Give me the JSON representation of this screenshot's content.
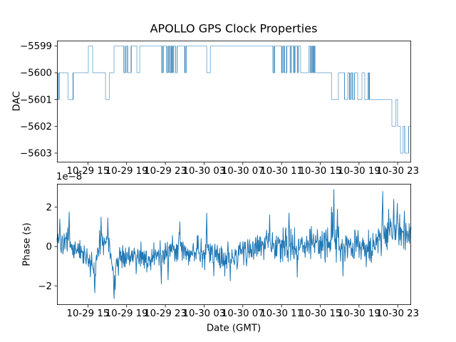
{
  "figure": {
    "title": "APOLLO GPS Clock Properties",
    "background": "#ffffff",
    "line_color": "#1f77b4",
    "text_color": "#000000"
  },
  "xaxis": {
    "label": "Date (GMT)",
    "tick_labels": [
      "10-29 15",
      "10-29 19",
      "10-29 23",
      "10-30 03",
      "10-30 07",
      "10-30 11",
      "10-30 15",
      "10-30 19",
      "10-30 23"
    ],
    "tick_hours": [
      15,
      19,
      23,
      27,
      31,
      35,
      39,
      43,
      47
    ],
    "hours_since": "10-29 00:00",
    "xlim_hours": [
      11.81,
      48.38
    ]
  },
  "chart_data": [
    {
      "type": "step-line",
      "name": "dac",
      "ylabel": "DAC",
      "yticks": [
        -5599,
        -5600,
        -5601,
        -5602,
        -5603
      ],
      "ytick_labels": [
        "−5599",
        "−5600",
        "−5601",
        "−5602",
        "−5603"
      ],
      "ylim": [
        -5603.32,
        -5598.77
      ],
      "grid": false,
      "legend": "none",
      "line_alpha_light": 0.5,
      "line_alpha_medium": 0.8,
      "line_alpha_dark": 1.0,
      "start_value": -5600,
      "transitions": [
        [
          11.88,
          -5601,
          "d"
        ],
        [
          12.03,
          -5600,
          "d"
        ],
        [
          12.95,
          -5601,
          "l"
        ],
        [
          13.47,
          -5600,
          "d"
        ],
        [
          15.05,
          -5599,
          "l"
        ],
        [
          15.49,
          -5600,
          "l"
        ],
        [
          16.82,
          -5601,
          "l"
        ],
        [
          17.22,
          -5600,
          "l"
        ],
        [
          17.7,
          -5599,
          "l"
        ],
        [
          18.73,
          -5600,
          "d"
        ],
        [
          18.92,
          -5599,
          "d"
        ],
        [
          19.1,
          -5600,
          "d"
        ],
        [
          19.47,
          -5599,
          "d"
        ],
        [
          20.06,
          -5600,
          "l"
        ],
        [
          20.35,
          -5599,
          "l"
        ],
        [
          22.64,
          -5600,
          "d"
        ],
        [
          22.78,
          -5599,
          "d"
        ],
        [
          23.15,
          -5600,
          "d"
        ],
        [
          23.3,
          -5599,
          "d"
        ],
        [
          23.45,
          -5600,
          "d"
        ],
        [
          23.6,
          -5599,
          "d"
        ],
        [
          23.71,
          -5600,
          "d"
        ],
        [
          23.82,
          -5599,
          "d"
        ],
        [
          24.04,
          -5600,
          "m"
        ],
        [
          24.22,
          -5599,
          "m"
        ],
        [
          25.0,
          -5600,
          "d"
        ],
        [
          25.14,
          -5599,
          "d"
        ],
        [
          27.28,
          -5600,
          "l"
        ],
        [
          27.65,
          -5599,
          "l"
        ],
        [
          34.13,
          -5600,
          "d"
        ],
        [
          34.28,
          -5599,
          "d"
        ],
        [
          35.02,
          -5600,
          "d"
        ],
        [
          35.16,
          -5599,
          "d"
        ],
        [
          35.31,
          -5600,
          "d"
        ],
        [
          35.53,
          -5599,
          "d"
        ],
        [
          35.9,
          -5600,
          "m"
        ],
        [
          36.01,
          -5599,
          "m"
        ],
        [
          36.27,
          -5600,
          "d"
        ],
        [
          36.38,
          -5599,
          "d"
        ],
        [
          36.64,
          -5600,
          "m"
        ],
        [
          36.75,
          -5599,
          "m"
        ],
        [
          36.97,
          -5600,
          "l"
        ],
        [
          37.81,
          -5599,
          "l"
        ],
        [
          37.96,
          -5600,
          "d"
        ],
        [
          38.11,
          -5599,
          "d"
        ],
        [
          38.22,
          -5600,
          "d"
        ],
        [
          38.33,
          -5599,
          "d"
        ],
        [
          38.44,
          -5600,
          "d"
        ],
        [
          40.17,
          -5601,
          "l"
        ],
        [
          40.87,
          -5600,
          "l"
        ],
        [
          41.5,
          -5601,
          "m"
        ],
        [
          41.83,
          -5600,
          "l"
        ],
        [
          42.01,
          -5601,
          "d"
        ],
        [
          42.16,
          -5600,
          "d"
        ],
        [
          42.34,
          -5601,
          "d"
        ],
        [
          42.53,
          -5600,
          "m"
        ],
        [
          42.86,
          -5601,
          "l"
        ],
        [
          43.3,
          -5600,
          "l"
        ],
        [
          43.59,
          -5601,
          "l"
        ],
        [
          43.96,
          -5600,
          "d"
        ],
        [
          44.07,
          -5601,
          "d"
        ],
        [
          46.39,
          -5602,
          "l"
        ],
        [
          46.8,
          -5601,
          "l"
        ],
        [
          46.98,
          -5602,
          "l"
        ],
        [
          47.28,
          -5603,
          "l"
        ],
        [
          47.54,
          -5602,
          "l"
        ],
        [
          47.72,
          -5603,
          "m"
        ],
        [
          48.12,
          -5602,
          "m"
        ]
      ]
    },
    {
      "type": "line",
      "name": "phase",
      "ylabel": "Phase (s)",
      "offset_label": "1e−8",
      "unit_scale": 1e-08,
      "yticks": [
        -2,
        0,
        2
      ],
      "ytick_labels": [
        "−2",
        "0",
        "2"
      ],
      "ylim": [
        -2.95,
        3.19
      ],
      "grid": false,
      "legend": "none",
      "noise_seed": 20,
      "n_samples": 900,
      "envelope": [
        [
          11.81,
          0.35,
          0.55
        ],
        [
          12.55,
          0.0,
          0.75
        ],
        [
          13.06,
          0.3,
          1.0
        ],
        [
          13.65,
          -0.2,
          0.95
        ],
        [
          14.39,
          -0.45,
          0.7
        ],
        [
          15.13,
          -0.55,
          0.75
        ],
        [
          15.71,
          -1.3,
          0.85
        ],
        [
          16.23,
          0.2,
          0.95
        ],
        [
          16.97,
          0.5,
          0.8
        ],
        [
          17.48,
          -0.7,
          1.1
        ],
        [
          17.7,
          -1.4,
          0.9
        ],
        [
          18.29,
          -0.55,
          0.75
        ],
        [
          19.18,
          -0.5,
          0.7
        ],
        [
          20.13,
          -0.45,
          0.75
        ],
        [
          21.02,
          -0.6,
          0.8
        ],
        [
          21.53,
          -0.7,
          0.8
        ],
        [
          22.12,
          -0.4,
          0.85
        ],
        [
          22.86,
          -0.2,
          0.9
        ],
        [
          23.6,
          -0.15,
          0.85
        ],
        [
          24.48,
          -0.05,
          0.9
        ],
        [
          25.07,
          -0.1,
          0.85
        ],
        [
          25.66,
          -0.3,
          0.85
        ],
        [
          26.4,
          -0.1,
          0.85
        ],
        [
          27.13,
          -0.3,
          0.9
        ],
        [
          27.87,
          -0.45,
          0.8
        ],
        [
          28.61,
          -0.5,
          0.8
        ],
        [
          29.34,
          -0.55,
          0.75
        ],
        [
          29.93,
          -0.5,
          0.75
        ],
        [
          30.82,
          -0.35,
          0.8
        ],
        [
          31.85,
          -0.1,
          0.85
        ],
        [
          32.8,
          0.0,
          0.9
        ],
        [
          33.76,
          0.1,
          1.0
        ],
        [
          34.65,
          0.05,
          0.9
        ],
        [
          35.6,
          0.1,
          1.0
        ],
        [
          36.49,
          0.1,
          1.0
        ],
        [
          37.44,
          0.15,
          1.0
        ],
        [
          38.33,
          0.3,
          1.05
        ],
        [
          39.21,
          0.1,
          1.1
        ],
        [
          39.95,
          0.3,
          1.15
        ],
        [
          40.39,
          0.45,
          1.3
        ],
        [
          40.98,
          0.0,
          1.0
        ],
        [
          41.86,
          0.05,
          0.9
        ],
        [
          42.75,
          0.05,
          0.9
        ],
        [
          43.63,
          -0.05,
          0.95
        ],
        [
          44.37,
          -0.1,
          1.0
        ],
        [
          45.1,
          0.3,
          1.15
        ],
        [
          45.69,
          0.55,
          1.15
        ],
        [
          46.43,
          0.75,
          1.15
        ],
        [
          47.02,
          0.8,
          1.05
        ],
        [
          47.61,
          0.6,
          0.95
        ],
        [
          48.05,
          0.45,
          0.85
        ],
        [
          48.38,
          0.5,
          0.8
        ]
      ],
      "spikes": [
        [
          12.1,
          1.4
        ],
        [
          13.06,
          1.75
        ],
        [
          15.27,
          -1.55
        ],
        [
          15.71,
          -2.35
        ],
        [
          16.36,
          1.5
        ],
        [
          17.04,
          1.45
        ],
        [
          17.7,
          -2.65
        ],
        [
          17.85,
          -2.2
        ],
        [
          22.57,
          -1.9
        ],
        [
          23.3,
          -1.7
        ],
        [
          24.5,
          1.25
        ],
        [
          27.28,
          1.7
        ],
        [
          28.0,
          -1.5
        ],
        [
          29.71,
          -1.75
        ],
        [
          33.76,
          1.6
        ],
        [
          35.75,
          1.7
        ],
        [
          36.64,
          -1.55
        ],
        [
          40.17,
          2.0
        ],
        [
          40.39,
          2.9
        ],
        [
          40.76,
          1.9
        ],
        [
          41.35,
          -1.5
        ],
        [
          45.47,
          2.8
        ],
        [
          46.06,
          1.9
        ],
        [
          46.58,
          2.4
        ],
        [
          46.95,
          2.2
        ],
        [
          47.69,
          1.8
        ]
      ]
    }
  ]
}
